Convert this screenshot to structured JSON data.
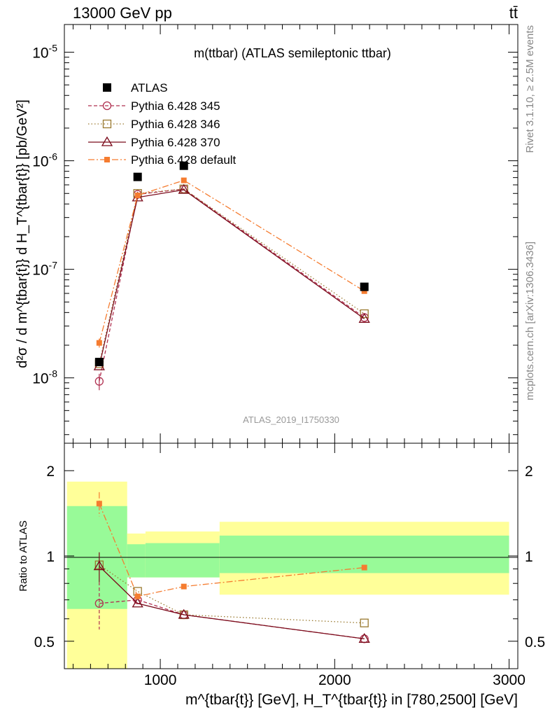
{
  "header": {
    "left": "13000 GeV pp",
    "right": "tt̄"
  },
  "side_labels": {
    "rivet": "Rivet 3.1.10, ≥ 2.5M events",
    "mcplots": "mcplots.cern.ch [arXiv:1306.3436]"
  },
  "colors": {
    "ATLAS": "#000000",
    "Pythia 6.428 345": "#b03050",
    "Pythia 6.428 346": "#9a7a30",
    "Pythia 6.428 370": "#7a0a1a",
    "Pythia 6.428 default": "#f57c30",
    "band_inner": "#98fa98",
    "band_outer": "#ffff99"
  },
  "chart_data": [
    {
      "type": "scatter",
      "title": "m(ttbar) (ATLAS semileptonic ttbar)",
      "analysis_id": "ATLAS_2019_I1750330",
      "ylabel": "d²σ / d m^{tbar{t}} d H_T^{tbar{t}} [pb/GeV²]",
      "yscale": "log",
      "ylim": [
        2.5e-09,
        1.8e-05
      ],
      "xlim": [
        450,
        3050
      ],
      "y_ticks": [
        "10^{-8}",
        "10^{-7}",
        "10^{-6}",
        "10^{-5}"
      ],
      "legend_position": "top-left",
      "x": [
        650,
        870,
        1135,
        2170
      ],
      "series": [
        {
          "name": "ATLAS",
          "marker": "filled-square",
          "values": [
            1.4e-08,
            7.1e-07,
            9e-07,
            6.9e-08
          ],
          "errors": [
            0,
            0,
            0,
            0
          ]
        },
        {
          "name": "Pythia 6.428 345",
          "marker": "open-circle",
          "dash": "5,3",
          "values": [
            9.3e-09,
            4.9e-07,
            5.5e-07,
            3.6e-08
          ],
          "errors": [
            1.6e-09,
            0,
            0,
            0
          ]
        },
        {
          "name": "Pythia 6.428 346",
          "marker": "open-square",
          "dash": "1.5,3",
          "values": [
            1.35e-08,
            5e-07,
            5.5e-07,
            3.9e-08
          ],
          "errors": [
            0,
            0,
            0,
            0
          ]
        },
        {
          "name": "Pythia 6.428 370",
          "marker": "open-triangle",
          "dash": "",
          "values": [
            1.28e-08,
            4.6e-07,
            5.4e-07,
            3.5e-08
          ],
          "errors": [
            0,
            0,
            0,
            0
          ]
        },
        {
          "name": "Pythia 6.428 default",
          "marker": "filled-small-square",
          "dash": "9,3,2,3",
          "values": [
            2.1e-08,
            4.8e-07,
            6.6e-07,
            6.3e-08
          ],
          "errors": [
            2e-09,
            0,
            0,
            0
          ]
        }
      ]
    },
    {
      "type": "scatter",
      "ylabel": "Ratio to ATLAS",
      "xlabel": "m^{tbar{t}} [GeV], H_T^{tbar{t}} in [780,2500] [GeV]",
      "ylim": [
        0.4,
        2.5
      ],
      "xlim": [
        450,
        3050
      ],
      "y_ticks": [
        "0.5",
        "1",
        "2"
      ],
      "x_ticks": [
        "1000",
        "2000",
        "3000"
      ],
      "bands": [
        {
          "x_range": [
            465,
            810
          ],
          "inner": [
            0.65,
            1.5
          ],
          "outer": [
            0.4,
            1.83
          ]
        },
        {
          "x_range": [
            810,
            915
          ],
          "inner": [
            0.84,
            1.1
          ],
          "outer": [
            0.84,
            1.2
          ]
        },
        {
          "x_range": [
            915,
            1340
          ],
          "inner": [
            0.84,
            1.11
          ],
          "outer": [
            0.84,
            1.22
          ]
        },
        {
          "x_range": [
            1340,
            3000
          ],
          "inner": [
            0.87,
            1.18
          ],
          "outer": [
            0.73,
            1.32
          ]
        }
      ],
      "x": [
        650,
        870,
        1135,
        2170
      ],
      "series": [
        {
          "name": "Pythia 6.428 345",
          "values": [
            0.68,
            0.7,
            0.62,
            0.51
          ],
          "errors": [
            0.13,
            0,
            0,
            0
          ]
        },
        {
          "name": "Pythia 6.428 346",
          "values": [
            0.93,
            0.75,
            0.62,
            0.58
          ],
          "errors": [
            0,
            0,
            0,
            0
          ]
        },
        {
          "name": "Pythia 6.428 370",
          "values": [
            0.92,
            0.68,
            0.62,
            0.51
          ],
          "errors": [
            0.11,
            0,
            0,
            0
          ]
        },
        {
          "name": "Pythia 6.428 default",
          "values": [
            1.53,
            0.72,
            0.78,
            0.91
          ],
          "errors": [
            0.15,
            0,
            0,
            0
          ]
        }
      ]
    }
  ]
}
